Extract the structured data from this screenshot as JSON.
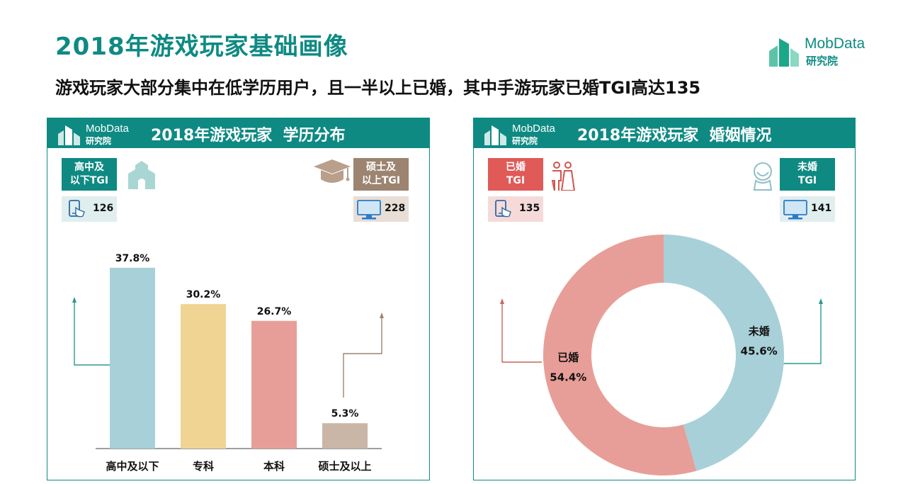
{
  "header": {
    "title": "2018年游戏玩家基础画像",
    "subtitle": "游戏玩家大部分集中在低学历用户，且一半以上已婚，其中手游玩家已婚TGI高达135"
  },
  "brand": {
    "name": "MobData",
    "sub": "研究院"
  },
  "left_panel": {
    "title": "2018年游戏玩家  学历分布",
    "tgi_low": {
      "label_line1": "高中及",
      "label_line2": "以下TGI",
      "value": "126"
    },
    "tgi_high": {
      "label_line1": "硕士及",
      "label_line2": "以上TGI",
      "value": "228"
    }
  },
  "right_panel": {
    "title": "2018年游戏玩家  婚姻情况",
    "tgi_married": {
      "label_line1": "已婚",
      "label_line2": "TGI",
      "value": "135"
    },
    "tgi_single": {
      "label_line1": "未婚",
      "label_line2": "TGI",
      "value": "141"
    }
  },
  "colors": {
    "teal": "#0e8a83",
    "married": "#e07a78",
    "pink_light": "#f6dada",
    "teal_light": "#e0eeee",
    "brown": "#9c8470",
    "brown_light": "#e8ded6"
  },
  "chart_data": [
    {
      "type": "bar",
      "categories": [
        "高中及以下",
        "专科",
        "本科",
        "硕士及以上"
      ],
      "values": [
        37.8,
        30.2,
        26.7,
        5.3
      ],
      "value_labels": [
        "37.8%",
        "30.2%",
        "26.7%",
        "5.3%"
      ],
      "colors": [
        "#a8d0d8",
        "#efd494",
        "#e89e98",
        "#c9b6a6"
      ],
      "ylim": [
        0,
        40
      ],
      "grid": false
    },
    {
      "type": "pie",
      "donut": true,
      "labels": [
        "未婚",
        "已婚"
      ],
      "values": [
        45.6,
        54.4
      ],
      "value_labels": [
        "45.6%",
        "54.4%"
      ],
      "colors": [
        "#a8d0d8",
        "#e89e98"
      ]
    }
  ]
}
